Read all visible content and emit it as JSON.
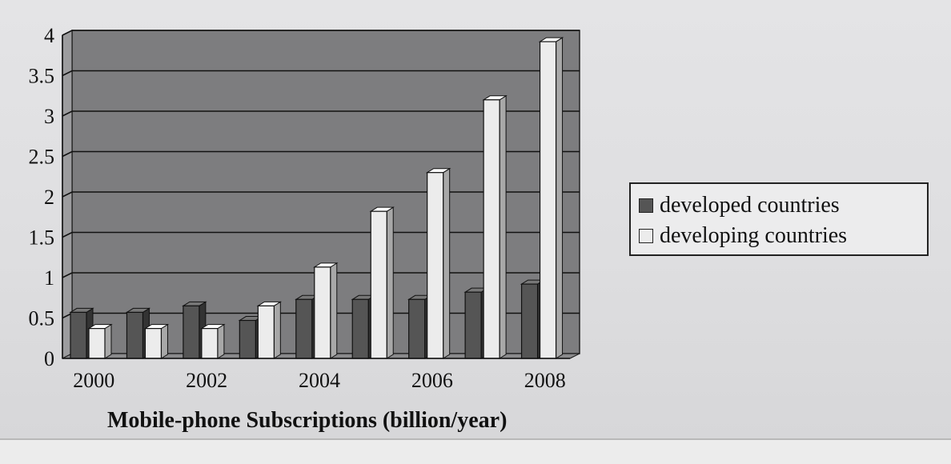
{
  "chart_data": {
    "type": "bar",
    "caption": "Mobile-phone Subscriptions (billion/year)",
    "x": [
      2000,
      2001,
      2002,
      2003,
      2004,
      2005,
      2006,
      2007,
      2008
    ],
    "x_tick_labels": [
      "2000",
      "2002",
      "2004",
      "2006",
      "2008"
    ],
    "y_tick_labels": [
      "0",
      "0.5",
      "1",
      "1.5",
      "2",
      "2.5",
      "3",
      "3.5",
      "4"
    ],
    "ylim": [
      0,
      4
    ],
    "grid": true,
    "legend_position": "right",
    "series": [
      {
        "name": "developed countries",
        "color": "#555555",
        "values": [
          0.57,
          0.57,
          0.65,
          0.47,
          0.73,
          0.73,
          0.73,
          0.82,
          0.92
        ]
      },
      {
        "name": "developing countries",
        "color": "#ececec",
        "values": [
          0.37,
          0.37,
          0.37,
          0.65,
          1.13,
          1.82,
          2.3,
          3.2,
          3.92
        ]
      }
    ]
  }
}
